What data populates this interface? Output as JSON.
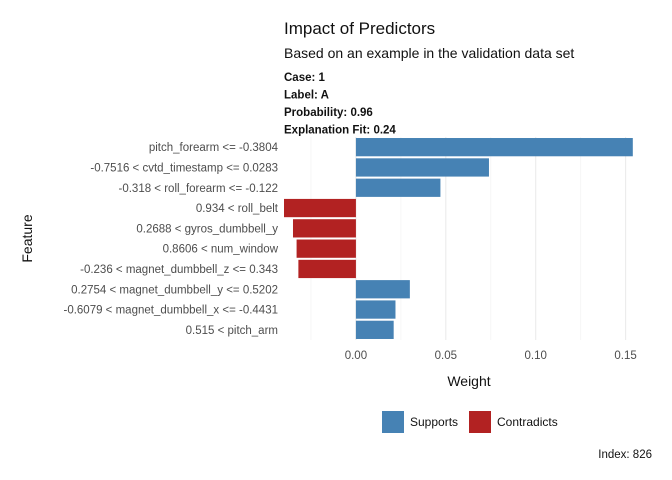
{
  "chart_data": {
    "type": "bar",
    "orientation": "horizontal",
    "title": "Impact of Predictors",
    "subtitle": "Based on an example in the validation data set",
    "case_info": [
      "Case: 1",
      "Label: A",
      "Probability: 0.96",
      "Explanation Fit: 0.24"
    ],
    "categories": [
      "pitch_forearm <= -0.3804",
      "-0.7516 < cvtd_timestamp <= 0.0283",
      "-0.318 < roll_forearm <= -0.122",
      "0.934 < roll_belt",
      "0.2688 < gyros_dumbbell_y",
      "0.8606 < num_window",
      "-0.236 < magnet_dumbbell_z <= 0.343",
      "0.2754 < magnet_dumbbell_y <= 0.5202",
      "-0.6079 < magnet_dumbbell_x <= -0.4431",
      "0.515 < pitch_arm"
    ],
    "values": [
      0.154,
      0.074,
      0.047,
      -0.04,
      -0.035,
      -0.033,
      -0.032,
      0.03,
      0.022,
      0.021
    ],
    "xlabel": "Weight",
    "ylabel": "Feature",
    "xlim": [
      -0.04,
      0.158
    ],
    "xticks": [
      0.0,
      0.05,
      0.1,
      0.15
    ],
    "xtick_labels": [
      "0.00",
      "0.05",
      "0.10",
      "0.15"
    ],
    "grid": true,
    "legend": {
      "placement": "bottom",
      "items": [
        {
          "label": "Supports",
          "color": "#4682b4"
        },
        {
          "label": "Contradicts",
          "color": "#b22222"
        }
      ]
    },
    "caption": "Index: 826",
    "colors": {
      "supports": "#4682b4",
      "contradicts": "#b22222",
      "grid": "#ebebeb"
    }
  }
}
